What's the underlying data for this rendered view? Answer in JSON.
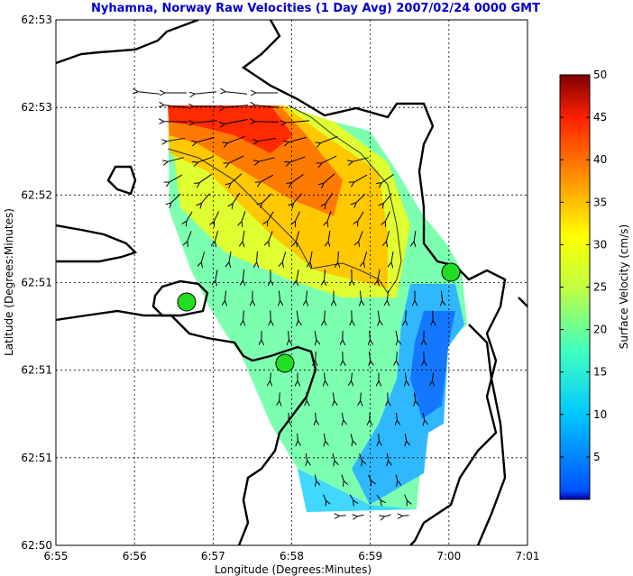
{
  "chart_data": {
    "type": "heatmap",
    "title": "Nyhamna, Norway Raw Velocities (1 Day Avg) 2007/02/24 0000 GMT",
    "xlabel": "Longitude (Degrees:Minutes)",
    "ylabel": "Latitude (Degrees:Minutes)",
    "x_ticks": [
      "6:55",
      "6:56",
      "6:57",
      "6:58",
      "6:59",
      "7:00",
      "7:01"
    ],
    "y_ticks": [
      "62:53",
      "62:53",
      "62:52",
      "62:51",
      "62:51",
      "62:51",
      "62:50"
    ],
    "xlim": [
      "6:55",
      "7:01"
    ],
    "grid": true,
    "colorbar": {
      "label": "Surface Velocity (cm/s)",
      "range": [
        0,
        50
      ],
      "ticks": [
        5,
        10,
        15,
        20,
        25,
        30,
        35,
        40,
        45,
        50
      ],
      "colormap": "jet"
    },
    "contour_level": 30,
    "sites": 3,
    "colors": {
      "title": "#0000d0",
      "site_marker": "#22dd22",
      "coastline": "#000000"
    }
  }
}
